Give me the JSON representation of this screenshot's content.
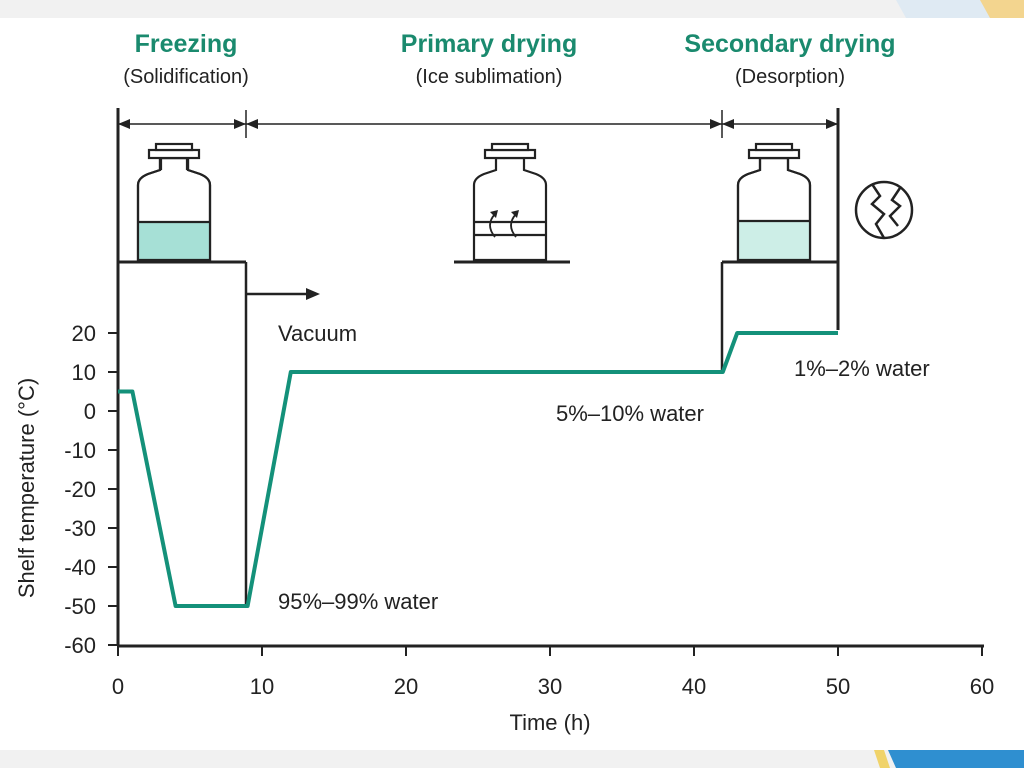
{
  "phases": [
    {
      "title": "Freezing",
      "subtitle": "(Solidification)"
    },
    {
      "title": "Primary drying",
      "subtitle": "(Ice sublimation)"
    },
    {
      "title": "Secondary drying",
      "subtitle": "(Desorption)"
    }
  ],
  "annotations": {
    "vacuum": "Vacuum",
    "water_freezing": "95%–99% water",
    "water_primary": "5%–10% water",
    "water_secondary": "1%–2% water"
  },
  "icons": [
    "vial-frozen-icon",
    "vial-sublimation-icon",
    "vial-dried-icon",
    "broken-cake-icon"
  ],
  "colors": {
    "accent": "#1a8a6e",
    "line": "#14917a",
    "fill_frozen": "#a6e0d6",
    "fill_dried": "#cdeee7"
  },
  "chart_data": {
    "type": "line",
    "xlabel": "Time (h)",
    "ylabel": "Shelf temperature (°C)",
    "xlim": [
      0,
      60
    ],
    "ylim": [
      -60,
      20
    ],
    "xticks": [
      0,
      10,
      20,
      30,
      40,
      50,
      60
    ],
    "yticks": [
      20,
      10,
      0,
      -10,
      -20,
      -30,
      -40,
      -50,
      -60
    ],
    "grid": false,
    "series": [
      {
        "x": [
          0,
          1,
          4,
          9,
          12,
          42,
          43,
          50
        ],
        "y": [
          5,
          5,
          -50,
          -50,
          10,
          10,
          20,
          20
        ]
      }
    ],
    "phase_boundaries": [
      9,
      42,
      50
    ]
  }
}
